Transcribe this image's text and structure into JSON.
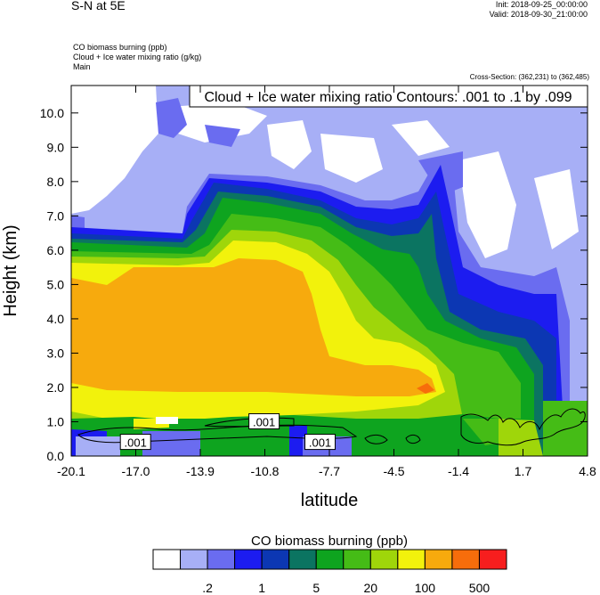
{
  "header": {
    "title": "S-N at 5E",
    "init": "Init: 2018-09-25_00:00:00",
    "valid": "Valid: 2018-09-30_21:00:00",
    "fields": [
      "CO biomass burning   (ppb)",
      "Cloud + Ice water mixing ratio   (g/kg)",
      "Main"
    ],
    "cross_section": "Cross-Section: (362,231) to (362,485)"
  },
  "chart_data": {
    "type": "heatmap",
    "xlabel": "latitude",
    "ylabel": "Height (km)",
    "xlim": [
      -20.1,
      4.8
    ],
    "ylim": [
      0,
      10.8
    ],
    "x_ticks": [
      "-20.1",
      "-17.0",
      "-13.9",
      "-10.8",
      "-7.7",
      "-4.5",
      "-1.4",
      "1.7",
      "4.8"
    ],
    "y_ticks": [
      "0.0",
      "1.0",
      "2.0",
      "3.0",
      "4.0",
      "5.0",
      "6.0",
      "7.0",
      "8.0",
      "9.0",
      "10.0"
    ],
    "contour_annotation": "Cloud + Ice water mixing ratio Contours: .001 to .1 by .099",
    "contour_labels": [
      {
        "text": ".001",
        "lat": -17.0,
        "height": 0.4
      },
      {
        "text": ".001",
        "lat": -10.8,
        "height": 1.0
      },
      {
        "text": ".001",
        "lat": -8.1,
        "height": 0.4
      }
    ],
    "colorbar": {
      "title": "CO biomass burning  (ppb)",
      "colors": [
        "#ffffff",
        "#a7aff6",
        "#6a6cf0",
        "#1c1cf0",
        "#0c37b3",
        "#0b7461",
        "#0ea41f",
        "#45bc16",
        "#9fd60a",
        "#f2f20c",
        "#f7aa0d",
        "#f76d0b",
        "#f71e1e"
      ],
      "tick_labels": [
        ".2",
        "1",
        "5",
        "20",
        "100",
        "500"
      ]
    }
  }
}
